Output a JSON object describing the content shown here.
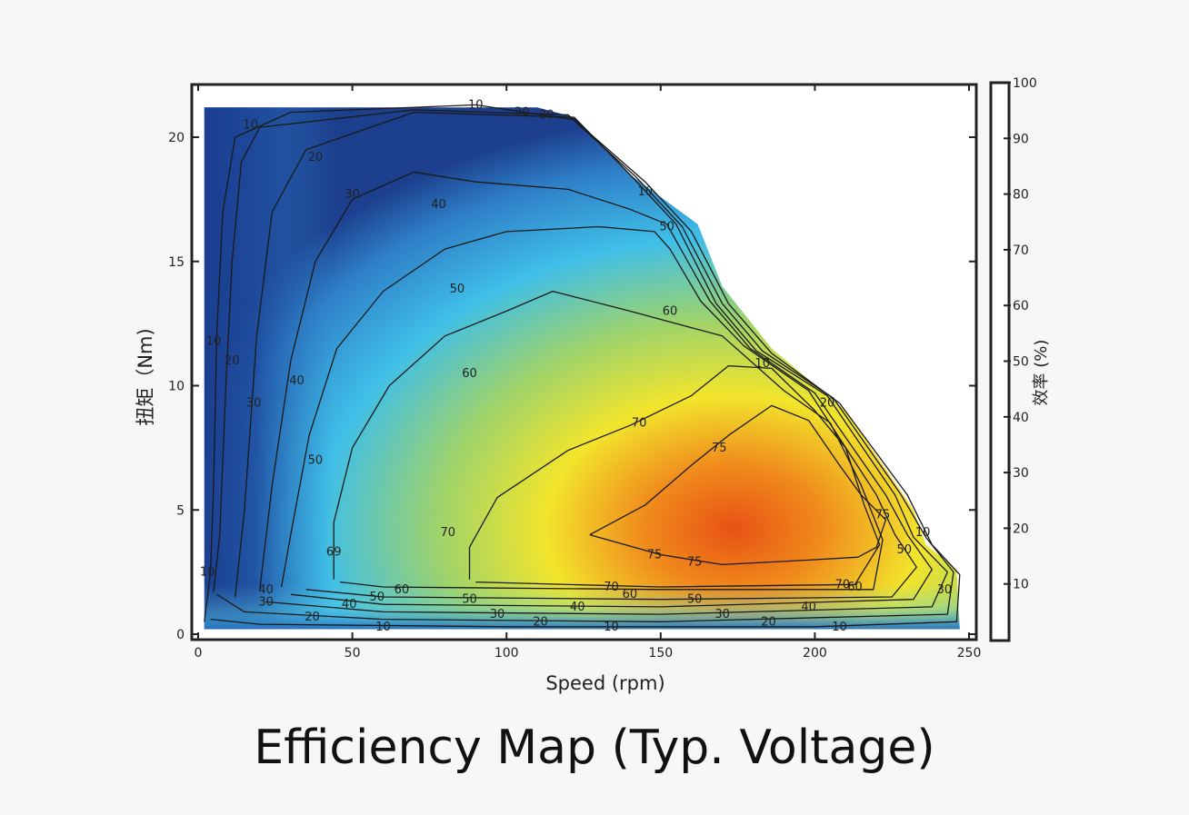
{
  "caption": "Efficiency Map (Typ. Voltage)",
  "chart_data": {
    "type": "heatmap",
    "title": "",
    "xlabel": "Speed (rpm)",
    "ylabel": "扭矩（Nm)",
    "colorbar_label": "效率 (%)",
    "xlim": [
      0,
      250
    ],
    "ylim": [
      0,
      22
    ],
    "clim": [
      0,
      100
    ],
    "xticks": [
      "0",
      "50",
      "100",
      "150",
      "200",
      "250"
    ],
    "yticks": [
      "0",
      "5",
      "10",
      "15",
      "20"
    ],
    "cticks": [
      "10",
      "20",
      "30",
      "40",
      "50",
      "60",
      "70",
      "80",
      "90",
      "100"
    ],
    "colormap": [
      "#1a3a8c",
      "#2f82c8",
      "#3cbde8",
      "#8fd36a",
      "#f2ea2a",
      "#f39a18",
      "#e95a14"
    ],
    "contour_levels": [
      10,
      20,
      30,
      40,
      50,
      60,
      70,
      75
    ],
    "envelope": [
      [
        2,
        21.2
      ],
      [
        110,
        21.2
      ],
      [
        122,
        20.8
      ],
      [
        140,
        18.5
      ],
      [
        162,
        16.5
      ],
      [
        170,
        14
      ],
      [
        186,
        11.5
      ],
      [
        210,
        9
      ],
      [
        232,
        5
      ],
      [
        236,
        3.6
      ],
      [
        246,
        2.6
      ],
      [
        247,
        0.2
      ],
      [
        2,
        0.2
      ]
    ],
    "peak_region": {
      "speed": 180,
      "torque": 4.5,
      "efficiency": 78
    },
    "contours": [
      {
        "level": "10",
        "points": [
          [
            2,
            0.5
          ],
          [
            4,
            2.5
          ],
          [
            5,
            6
          ],
          [
            6,
            12
          ],
          [
            8,
            17
          ],
          [
            12,
            20
          ],
          [
            30,
            21
          ],
          [
            90,
            21.3
          ],
          [
            122,
            20.7
          ],
          [
            145,
            18.2
          ],
          [
            160,
            16.2
          ],
          [
            172,
            13.3
          ],
          [
            186,
            11.3
          ],
          [
            208,
            9.3
          ],
          [
            230,
            5.6
          ],
          [
            238,
            3.6
          ],
          [
            247,
            2.4
          ],
          [
            246,
            0.5
          ],
          [
            200,
            0.3
          ],
          [
            100,
            0.3
          ],
          [
            20,
            0.4
          ],
          [
            4,
            0.6
          ]
        ]
      },
      {
        "level": "20",
        "points": [
          [
            5,
            1.7
          ],
          [
            7,
            4
          ],
          [
            9,
            10
          ],
          [
            11,
            15
          ],
          [
            14,
            19
          ],
          [
            20,
            20.4
          ],
          [
            70,
            21.1
          ],
          [
            120,
            20.9
          ],
          [
            142,
            18.4
          ],
          [
            157,
            16.4
          ],
          [
            170,
            13.3
          ],
          [
            183,
            11.4
          ],
          [
            206,
            9.5
          ],
          [
            228,
            5.6
          ],
          [
            236,
            3.9
          ],
          [
            245,
            2.5
          ],
          [
            243,
            0.8
          ],
          [
            150,
            0.5
          ],
          [
            60,
            0.6
          ],
          [
            15,
            0.9
          ],
          [
            6,
            1.6
          ]
        ]
      },
      {
        "level": "30",
        "points": [
          [
            12,
            1.5
          ],
          [
            15,
            5
          ],
          [
            19,
            12
          ],
          [
            24,
            17
          ],
          [
            35,
            19.5
          ],
          [
            70,
            21
          ],
          [
            122,
            20.8
          ],
          [
            140,
            18.5
          ],
          [
            155,
            16.5
          ],
          [
            168,
            13.3
          ],
          [
            181,
            11.4
          ],
          [
            204,
            9.6
          ],
          [
            226,
            5.6
          ],
          [
            232,
            3.9
          ],
          [
            243,
            2.5
          ],
          [
            238,
            1.1
          ],
          [
            150,
            0.8
          ],
          [
            60,
            0.9
          ],
          [
            22,
            1.3
          ]
        ]
      },
      {
        "level": "40",
        "points": [
          [
            20,
            1.8
          ],
          [
            24,
            6
          ],
          [
            30,
            11
          ],
          [
            38,
            15
          ],
          [
            50,
            17.5
          ],
          [
            70,
            18.6
          ],
          [
            90,
            18.2
          ],
          [
            120,
            17.9
          ],
          [
            140,
            17.1
          ],
          [
            152,
            16.5
          ],
          [
            166,
            13.4
          ],
          [
            179,
            11.5
          ],
          [
            200,
            9.7
          ],
          [
            223,
            5.6
          ],
          [
            230,
            4.0
          ],
          [
            238,
            2.6
          ],
          [
            232,
            1.4
          ],
          [
            150,
            1.1
          ],
          [
            60,
            1.2
          ],
          [
            30,
            1.6
          ]
        ]
      },
      {
        "level": "50",
        "points": [
          [
            27,
            1.9
          ],
          [
            30,
            4
          ],
          [
            36,
            8
          ],
          [
            45,
            11.5
          ],
          [
            60,
            13.8
          ],
          [
            80,
            15.5
          ],
          [
            100,
            16.2
          ],
          [
            130,
            16.4
          ],
          [
            148,
            16.2
          ],
          [
            153,
            15.5
          ],
          [
            163,
            13.4
          ],
          [
            177,
            11.6
          ],
          [
            198,
            9.8
          ],
          [
            220,
            5.6
          ],
          [
            226,
            4.0
          ],
          [
            233,
            2.7
          ],
          [
            225,
            1.5
          ],
          [
            150,
            1.4
          ],
          [
            60,
            1.5
          ],
          [
            35,
            1.8
          ]
        ]
      },
      {
        "level": "60",
        "points": [
          [
            44,
            2.2
          ],
          [
            44,
            4.5
          ],
          [
            50,
            7.5
          ],
          [
            62,
            10
          ],
          [
            80,
            12
          ],
          [
            100,
            13
          ],
          [
            115,
            13.8
          ],
          [
            140,
            13
          ],
          [
            155,
            12.5
          ],
          [
            170,
            12
          ],
          [
            190,
            9.8
          ],
          [
            205,
            8.5
          ],
          [
            215,
            6
          ],
          [
            222,
            3.8
          ],
          [
            219,
            1.8
          ],
          [
            150,
            1.8
          ],
          [
            60,
            1.9
          ],
          [
            46,
            2.1
          ]
        ]
      },
      {
        "level": "70",
        "points": [
          [
            88,
            2.2
          ],
          [
            88,
            3.5
          ],
          [
            97,
            5.5
          ],
          [
            120,
            7.4
          ],
          [
            140,
            8.4
          ],
          [
            160,
            9.6
          ],
          [
            172,
            10.8
          ],
          [
            186,
            10.7
          ],
          [
            200,
            9.0
          ],
          [
            210,
            7.5
          ],
          [
            216,
            5.2
          ],
          [
            221,
            3.6
          ],
          [
            213,
            2.0
          ],
          [
            150,
            1.9
          ],
          [
            90,
            2.1
          ]
        ]
      },
      {
        "level": "75",
        "points": [
          [
            127,
            4.0
          ],
          [
            145,
            5.2
          ],
          [
            160,
            6.8
          ],
          [
            172,
            8.0
          ],
          [
            186,
            9.2
          ],
          [
            198,
            8.6
          ],
          [
            208,
            6.8
          ],
          [
            215,
            5.6
          ],
          [
            223,
            4.6
          ],
          [
            220,
            3.5
          ],
          [
            214,
            3.1
          ],
          [
            200,
            3.0
          ],
          [
            170,
            2.8
          ],
          [
            150,
            3.2
          ],
          [
            127,
            4.0
          ]
        ]
      }
    ],
    "contour_labels": [
      {
        "text": "10",
        "x": 90,
        "y": 21.3
      },
      {
        "text": "20",
        "x": 105,
        "y": 21.0
      },
      {
        "text": "30",
        "x": 113,
        "y": 20.9
      },
      {
        "text": "10",
        "x": 17,
        "y": 20.5
      },
      {
        "text": "20",
        "x": 38,
        "y": 19.2
      },
      {
        "text": "30",
        "x": 50,
        "y": 17.7
      },
      {
        "text": "40",
        "x": 78,
        "y": 17.3
      },
      {
        "text": "50",
        "x": 84,
        "y": 13.9
      },
      {
        "text": "60",
        "x": 88,
        "y": 10.5
      },
      {
        "text": "50",
        "x": 152,
        "y": 16.4
      },
      {
        "text": "60",
        "x": 153,
        "y": 13.0
      },
      {
        "text": "70",
        "x": 143,
        "y": 8.5
      },
      {
        "text": "75",
        "x": 169,
        "y": 7.5
      },
      {
        "text": "70",
        "x": 81,
        "y": 4.1
      },
      {
        "text": "69",
        "x": 44,
        "y": 3.3
      },
      {
        "text": "75",
        "x": 148,
        "y": 3.2
      },
      {
        "text": "75",
        "x": 161,
        "y": 2.9
      },
      {
        "text": "75",
        "x": 222,
        "y": 4.8
      },
      {
        "text": "10",
        "x": 3,
        "y": 2.5
      },
      {
        "text": "10",
        "x": 5,
        "y": 11.8
      },
      {
        "text": "20",
        "x": 11,
        "y": 11.0
      },
      {
        "text": "30",
        "x": 18,
        "y": 9.3
      },
      {
        "text": "40",
        "x": 32,
        "y": 10.2
      },
      {
        "text": "50",
        "x": 38,
        "y": 7.0
      },
      {
        "text": "40",
        "x": 22,
        "y": 1.8
      },
      {
        "text": "30",
        "x": 22,
        "y": 1.3
      },
      {
        "text": "20",
        "x": 37,
        "y": 0.7
      },
      {
        "text": "40",
        "x": 49,
        "y": 1.2
      },
      {
        "text": "50",
        "x": 58,
        "y": 1.5
      },
      {
        "text": "60",
        "x": 66,
        "y": 1.8
      },
      {
        "text": "50",
        "x": 88,
        "y": 1.4
      },
      {
        "text": "30",
        "x": 97,
        "y": 0.8
      },
      {
        "text": "40",
        "x": 123,
        "y": 1.1
      },
      {
        "text": "70",
        "x": 134,
        "y": 1.9
      },
      {
        "text": "60",
        "x": 140,
        "y": 1.6
      },
      {
        "text": "20",
        "x": 111,
        "y": 0.5
      },
      {
        "text": "10",
        "x": 60,
        "y": 0.3
      },
      {
        "text": "10",
        "x": 134,
        "y": 0.3
      },
      {
        "text": "50",
        "x": 161,
        "y": 1.4
      },
      {
        "text": "30",
        "x": 170,
        "y": 0.8
      },
      {
        "text": "20",
        "x": 185,
        "y": 0.5
      },
      {
        "text": "40",
        "x": 198,
        "y": 1.1
      },
      {
        "text": "10",
        "x": 208,
        "y": 0.3
      },
      {
        "text": "70",
        "x": 209,
        "y": 2.0
      },
      {
        "text": "60",
        "x": 213,
        "y": 1.9
      },
      {
        "text": "50",
        "x": 229,
        "y": 3.4
      },
      {
        "text": "10",
        "x": 235,
        "y": 4.1
      },
      {
        "text": "30",
        "x": 242,
        "y": 1.8
      },
      {
        "text": "10",
        "x": 183,
        "y": 10.9
      },
      {
        "text": "20",
        "x": 204,
        "y": 9.3
      },
      {
        "text": "10",
        "x": 145,
        "y": 17.8
      }
    ]
  }
}
